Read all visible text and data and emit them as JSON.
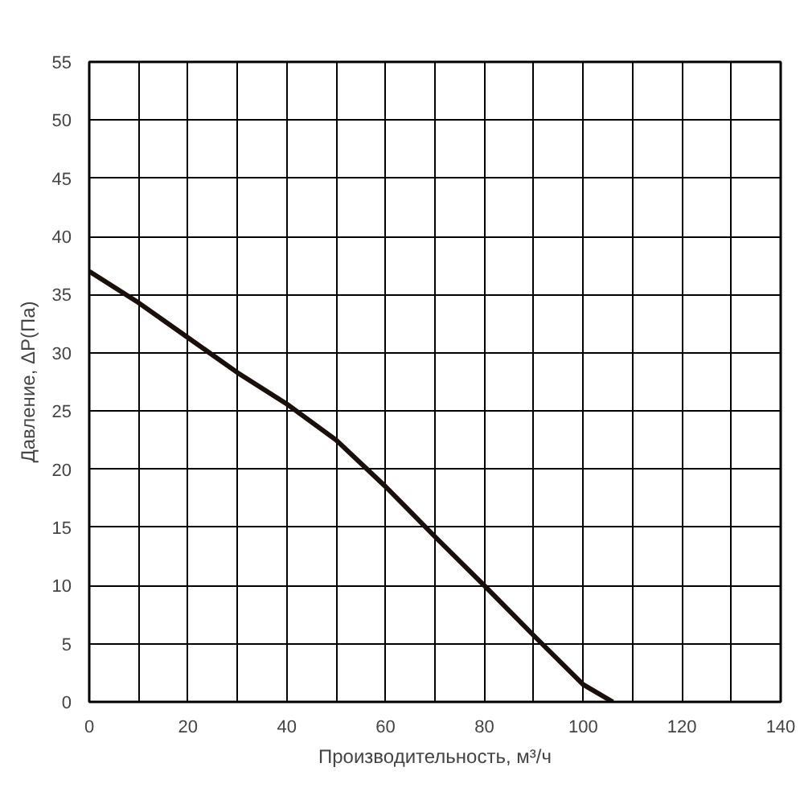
{
  "chart_data": {
    "type": "line",
    "xlabel": "Производительность, м³/ч",
    "ylabel": "Давление, ΔP(Па)",
    "x": [
      0,
      10,
      20,
      30,
      40,
      50,
      60,
      70,
      80,
      90,
      100,
      106
    ],
    "series": [
      {
        "color": "#1a0f0a",
        "values": [
          37,
          34.3,
          31.3,
          28.3,
          25.6,
          22.5,
          18.5,
          14.2,
          10,
          5.7,
          1.5,
          0
        ]
      }
    ],
    "xlim": [
      0,
      140
    ],
    "ylim": [
      0,
      55
    ],
    "xticks": [
      0,
      {
        "value": 10,
        "label": null
      },
      20,
      {
        "value": 30,
        "label": null
      },
      40,
      {
        "value": 50,
        "label": null
      },
      60,
      {
        "value": 70,
        "label": null
      },
      80,
      {
        "value": 90,
        "label": null
      },
      100,
      {
        "value": 110,
        "label": null
      },
      120,
      {
        "value": 130,
        "label": null
      },
      140
    ],
    "yticks": [
      0,
      5,
      10,
      15,
      20,
      25,
      30,
      35,
      40,
      45,
      50,
      55
    ],
    "grid": true,
    "marker": "none",
    "line_style": "solid"
  }
}
